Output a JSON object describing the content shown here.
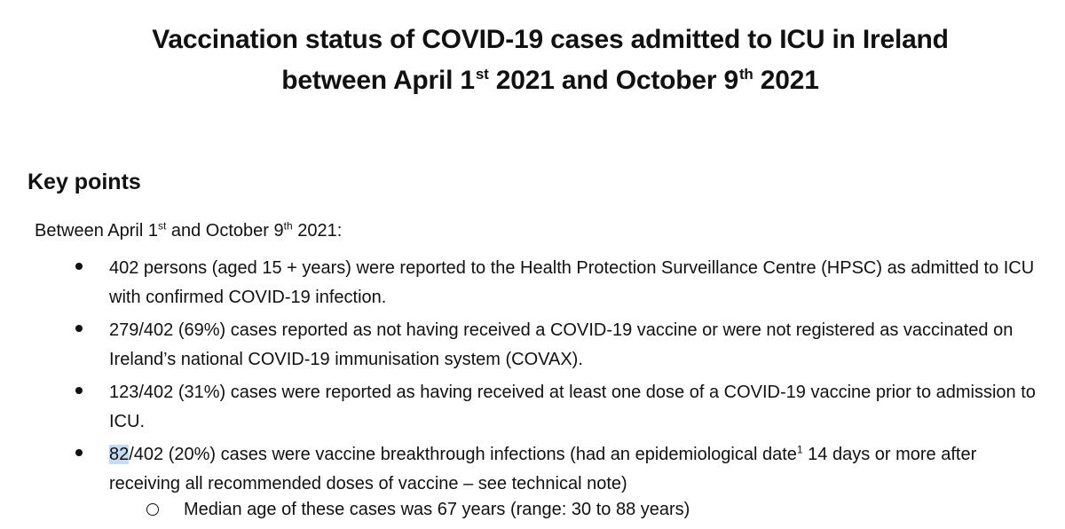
{
  "title": {
    "line1": "Vaccination status of COVID-19 cases admitted to ICU in Ireland",
    "line2_part1": "between April 1",
    "line2_sup1": "st",
    "line2_part2": " 2021 and October 9",
    "line2_sup2": "th",
    "line2_part3": " 2021"
  },
  "section_heading": "Key points",
  "intro": {
    "part1": "Between April 1",
    "sup1": "st",
    "part2": " and October 9",
    "sup2": "th",
    "part3": " 2021:"
  },
  "bullets": [
    {
      "text": "402 persons (aged 15 + years) were reported to the Health Protection Surveillance Centre (HPSC) as admitted to ICU with confirmed COVID-19 infection."
    },
    {
      "text": "279/402 (69%) cases reported as not having received a COVID-19 vaccine or were not registered as vaccinated on Ireland’s national COVID-19 immunisation system (COVAX)."
    },
    {
      "text": "123/402 (31%) cases were reported as having received at least one dose of a COVID-19 vaccine prior to admission to ICU."
    },
    {
      "highlighted": "82",
      "part1": "/402 (20%) cases were vaccine breakthrough infections (had an epidemiological date",
      "sup": "1",
      "part2": " 14 days or more after receiving all recommended doses of vaccine – see technical note)"
    }
  ],
  "sub_bullet": {
    "text": "Median age of these cases was 67 years (range: 30 to 88 years)"
  },
  "colors": {
    "text": "#111111",
    "highlight": "#c7dcf3",
    "background": "#ffffff"
  }
}
